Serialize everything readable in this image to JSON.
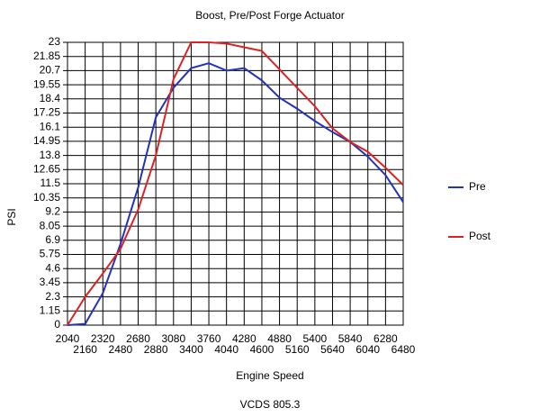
{
  "chart_data": {
    "type": "line",
    "title": "Boost, Pre/Post Forge Actuator",
    "x_label": "Engine Speed",
    "y_label": "PSI",
    "caption": "VCDS 805.3",
    "categories": [
      "2040",
      "2160",
      "2320",
      "2480",
      "2680",
      "2880",
      "3080",
      "3400",
      "3760",
      "4040",
      "4280",
      "4600",
      "4880",
      "5160",
      "5400",
      "5640",
      "5840",
      "6040",
      "6280",
      "6480"
    ],
    "series": [
      {
        "name": "Pre",
        "color": "#2233bb",
        "values": [
          0,
          0.1,
          2.6,
          6.6,
          11.2,
          16.9,
          19.3,
          20.9,
          21.3,
          20.7,
          20.9,
          19.9,
          18.5,
          17.6,
          16.6,
          15.7,
          14.9,
          13.7,
          12.2,
          10.0
        ]
      },
      {
        "name": "Post",
        "color": "#dd2222",
        "values": [
          0,
          2.3,
          4.2,
          6.2,
          9.4,
          13.8,
          20.0,
          23,
          23,
          22.9,
          22.6,
          22.3,
          20.8,
          19.3,
          17.8,
          16.0,
          14.9,
          14.1,
          12.8,
          11.4
        ]
      }
    ],
    "ylim": [
      0,
      23
    ],
    "yticks": [
      0,
      1.15,
      2.3,
      3.45,
      4.6,
      5.75,
      6.9,
      8.05,
      9.2,
      10.35,
      11.5,
      12.65,
      13.8,
      14.95,
      16.1,
      17.25,
      18.4,
      19.55,
      20.7,
      21.85,
      23
    ],
    "grid": true,
    "legend": "right"
  }
}
